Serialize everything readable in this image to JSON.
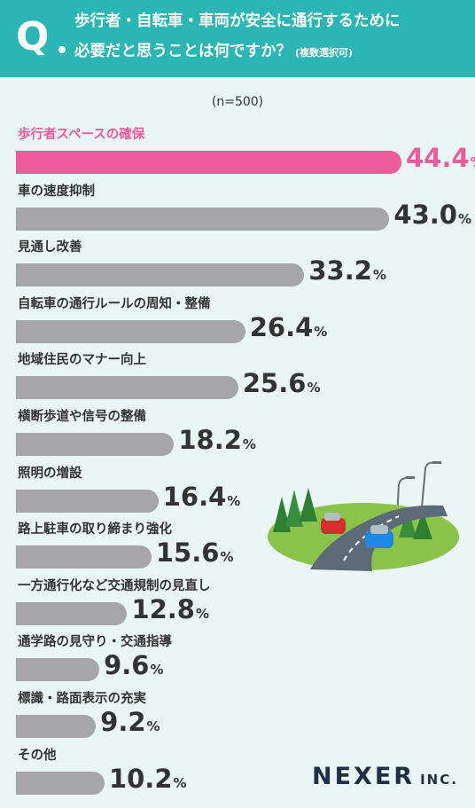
{
  "question": {
    "mark": "Q",
    "line1": "歩行者・自転車・車両が安全に通行するために",
    "line2": "必要だと思うことは何ですか？",
    "note": "(複数選択可)"
  },
  "sample_size": "(n=500)",
  "logo": {
    "name": "NEXER",
    "suffix": "INC."
  },
  "colors": {
    "header": "#2bb5b4",
    "highlight": "#ee5b9b",
    "bar": "#a6a6a8",
    "background": "#eaf6f5"
  },
  "illustration": "road-with-cars-illustration",
  "chart_data": {
    "type": "bar",
    "orientation": "horizontal",
    "unit": "%",
    "xlim": [
      0,
      50
    ],
    "grid": false,
    "legend": "none",
    "highlight_index": 0,
    "categories": [
      "歩行者スペースの確保",
      "車の速度抑制",
      "見通し改善",
      "自転車の通行ルールの周知・整備",
      "地域住民のマナー向上",
      "横断歩道や信号の整備",
      "照明の増設",
      "路上駐車の取り締まり強化",
      "一方通行化など交通規制の見直し",
      "通学路の見守り・交通指導",
      "標識・路面表示の充実",
      "その他"
    ],
    "values": [
      44.4,
      43.0,
      33.2,
      26.4,
      25.6,
      18.2,
      16.4,
      15.6,
      12.8,
      9.6,
      9.2,
      10.2
    ],
    "value_labels": [
      "44.4",
      "43.0",
      "33.2",
      "26.4",
      "25.6",
      "18.2",
      "16.4",
      "15.6",
      "12.8",
      "9.6",
      "9.2",
      "10.2"
    ]
  }
}
